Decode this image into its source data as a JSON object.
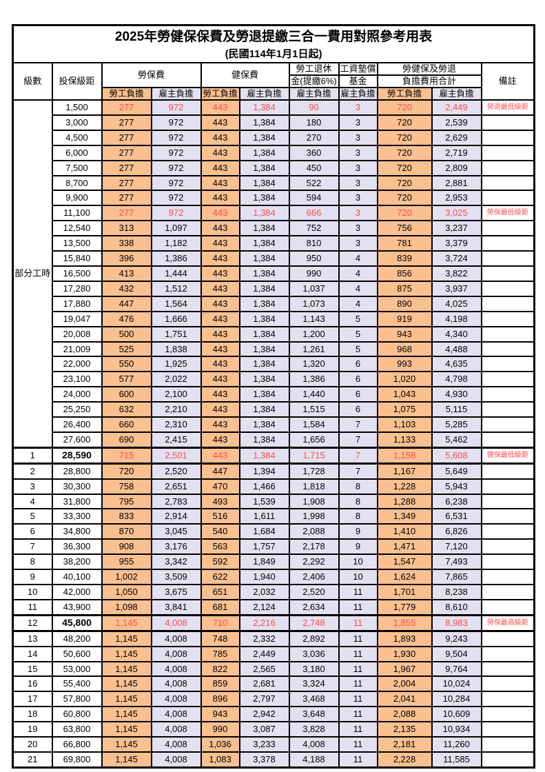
{
  "title": "2025年勞健保保費及勞退提繳三合一費用對照參考用表",
  "subtitle": "(民國114年1月1日起)",
  "colors": {
    "employee_bg": "#FAC090",
    "employer_bg": "#E3E1F1",
    "highlight_red": "#FF4A4A",
    "grid": "#000000"
  },
  "header": {
    "level": "級數",
    "bracket": "投保級距",
    "labor_insurance": "勞保費",
    "health_insurance": "健保費",
    "pension_line1": "勞工退休",
    "pension_line2": "金(提繳6%)",
    "fund_line1": "工資墊償",
    "fund_line2": "基金",
    "total_line1": "勞健保及勞退",
    "total_line2": "負擔費用合計",
    "note": "備註",
    "employee": "勞工負擔",
    "employer": "雇主負擔"
  },
  "part_time_label": "部分工時",
  "rows": [
    {
      "lvl": "",
      "bracket": "1,500",
      "li_e": "277",
      "li_r": "972",
      "hi_e": "443",
      "hi_r": "1,384",
      "pen": "90",
      "fund": "3",
      "tt_e": "720",
      "tt_r": "2,449",
      "note": "勞退最低級距",
      "red": true,
      "bold": false
    },
    {
      "lvl": "",
      "bracket": "3,000",
      "li_e": "277",
      "li_r": "972",
      "hi_e": "443",
      "hi_r": "1,384",
      "pen": "180",
      "fund": "3",
      "tt_e": "720",
      "tt_r": "2,539",
      "note": "",
      "red": false,
      "bold": false
    },
    {
      "lvl": "",
      "bracket": "4,500",
      "li_e": "277",
      "li_r": "972",
      "hi_e": "443",
      "hi_r": "1,384",
      "pen": "270",
      "fund": "3",
      "tt_e": "720",
      "tt_r": "2,629",
      "note": "",
      "red": false,
      "bold": false
    },
    {
      "lvl": "",
      "bracket": "6,000",
      "li_e": "277",
      "li_r": "972",
      "hi_e": "443",
      "hi_r": "1,384",
      "pen": "360",
      "fund": "3",
      "tt_e": "720",
      "tt_r": "2,719",
      "note": "",
      "red": false,
      "bold": false
    },
    {
      "lvl": "",
      "bracket": "7,500",
      "li_e": "277",
      "li_r": "972",
      "hi_e": "443",
      "hi_r": "1,384",
      "pen": "450",
      "fund": "3",
      "tt_e": "720",
      "tt_r": "2,809",
      "note": "",
      "red": false,
      "bold": false
    },
    {
      "lvl": "",
      "bracket": "8,700",
      "li_e": "277",
      "li_r": "972",
      "hi_e": "443",
      "hi_r": "1,384",
      "pen": "522",
      "fund": "3",
      "tt_e": "720",
      "tt_r": "2,881",
      "note": "",
      "red": false,
      "bold": false
    },
    {
      "lvl": "",
      "bracket": "9,900",
      "li_e": "277",
      "li_r": "972",
      "hi_e": "443",
      "hi_r": "1,384",
      "pen": "594",
      "fund": "3",
      "tt_e": "720",
      "tt_r": "2,953",
      "note": "",
      "red": false,
      "bold": false
    },
    {
      "lvl": "",
      "bracket": "11,100",
      "li_e": "277",
      "li_r": "972",
      "hi_e": "443",
      "hi_r": "1,384",
      "pen": "666",
      "fund": "3",
      "tt_e": "720",
      "tt_r": "3,025",
      "note": "勞保最低級距",
      "red": true,
      "bold": false
    },
    {
      "lvl": "",
      "bracket": "12,540",
      "li_e": "313",
      "li_r": "1,097",
      "hi_e": "443",
      "hi_r": "1,384",
      "pen": "752",
      "fund": "3",
      "tt_e": "756",
      "tt_r": "3,237",
      "note": "",
      "red": false,
      "bold": false
    },
    {
      "lvl": "",
      "bracket": "13,500",
      "li_e": "338",
      "li_r": "1,182",
      "hi_e": "443",
      "hi_r": "1,384",
      "pen": "810",
      "fund": "3",
      "tt_e": "781",
      "tt_r": "3,379",
      "note": "",
      "red": false,
      "bold": false
    },
    {
      "lvl": "",
      "bracket": "15,840",
      "li_e": "396",
      "li_r": "1,386",
      "hi_e": "443",
      "hi_r": "1,384",
      "pen": "950",
      "fund": "4",
      "tt_e": "839",
      "tt_r": "3,724",
      "note": "",
      "red": false,
      "bold": false
    },
    {
      "lvl": "",
      "bracket": "16,500",
      "li_e": "413",
      "li_r": "1,444",
      "hi_e": "443",
      "hi_r": "1,384",
      "pen": "990",
      "fund": "4",
      "tt_e": "856",
      "tt_r": "3,822",
      "note": "",
      "red": false,
      "bold": false
    },
    {
      "lvl": "",
      "bracket": "17,280",
      "li_e": "432",
      "li_r": "1,512",
      "hi_e": "443",
      "hi_r": "1,384",
      "pen": "1,037",
      "fund": "4",
      "tt_e": "875",
      "tt_r": "3,937",
      "note": "",
      "red": false,
      "bold": false
    },
    {
      "lvl": "",
      "bracket": "17,880",
      "li_e": "447",
      "li_r": "1,564",
      "hi_e": "443",
      "hi_r": "1,384",
      "pen": "1,073",
      "fund": "4",
      "tt_e": "890",
      "tt_r": "4,025",
      "note": "",
      "red": false,
      "bold": false
    },
    {
      "lvl": "",
      "bracket": "19,047",
      "li_e": "476",
      "li_r": "1,666",
      "hi_e": "443",
      "hi_r": "1,384",
      "pen": "1,143",
      "fund": "5",
      "tt_e": "919",
      "tt_r": "4,198",
      "note": "",
      "red": false,
      "bold": false
    },
    {
      "lvl": "",
      "bracket": "20,008",
      "li_e": "500",
      "li_r": "1,751",
      "hi_e": "443",
      "hi_r": "1,384",
      "pen": "1,200",
      "fund": "5",
      "tt_e": "943",
      "tt_r": "4,340",
      "note": "",
      "red": false,
      "bold": false
    },
    {
      "lvl": "",
      "bracket": "21,009",
      "li_e": "525",
      "li_r": "1,838",
      "hi_e": "443",
      "hi_r": "1,384",
      "pen": "1,261",
      "fund": "5",
      "tt_e": "968",
      "tt_r": "4,488",
      "note": "",
      "red": false,
      "bold": false
    },
    {
      "lvl": "",
      "bracket": "22,000",
      "li_e": "550",
      "li_r": "1,925",
      "hi_e": "443",
      "hi_r": "1,384",
      "pen": "1,320",
      "fund": "6",
      "tt_e": "993",
      "tt_r": "4,635",
      "note": "",
      "red": false,
      "bold": false
    },
    {
      "lvl": "",
      "bracket": "23,100",
      "li_e": "577",
      "li_r": "2,022",
      "hi_e": "443",
      "hi_r": "1,384",
      "pen": "1,386",
      "fund": "6",
      "tt_e": "1,020",
      "tt_r": "4,798",
      "note": "",
      "red": false,
      "bold": false
    },
    {
      "lvl": "",
      "bracket": "24,000",
      "li_e": "600",
      "li_r": "2,100",
      "hi_e": "443",
      "hi_r": "1,384",
      "pen": "1,440",
      "fund": "6",
      "tt_e": "1,043",
      "tt_r": "4,930",
      "note": "",
      "red": false,
      "bold": false
    },
    {
      "lvl": "",
      "bracket": "25,250",
      "li_e": "632",
      "li_r": "2,210",
      "hi_e": "443",
      "hi_r": "1,384",
      "pen": "1,515",
      "fund": "6",
      "tt_e": "1,075",
      "tt_r": "5,115",
      "note": "",
      "red": false,
      "bold": false
    },
    {
      "lvl": "",
      "bracket": "26,400",
      "li_e": "660",
      "li_r": "2,310",
      "hi_e": "443",
      "hi_r": "1,384",
      "pen": "1,584",
      "fund": "7",
      "tt_e": "1,103",
      "tt_r": "5,285",
      "note": "",
      "red": false,
      "bold": false
    },
    {
      "lvl": "",
      "bracket": "27,600",
      "li_e": "690",
      "li_r": "2,415",
      "hi_e": "443",
      "hi_r": "1,384",
      "pen": "1,656",
      "fund": "7",
      "tt_e": "1,133",
      "tt_r": "5,462",
      "note": "",
      "red": false,
      "bold": false
    },
    {
      "lvl": "1",
      "bracket": "28,590",
      "li_e": "715",
      "li_r": "2,501",
      "hi_e": "443",
      "hi_r": "1,384",
      "pen": "1,715",
      "fund": "7",
      "tt_e": "1,158",
      "tt_r": "5,608",
      "note": "健保最低級距",
      "red": true,
      "bold": true
    },
    {
      "lvl": "2",
      "bracket": "28,800",
      "li_e": "720",
      "li_r": "2,520",
      "hi_e": "447",
      "hi_r": "1,394",
      "pen": "1,728",
      "fund": "7",
      "tt_e": "1,167",
      "tt_r": "5,649",
      "note": "",
      "red": false,
      "bold": false
    },
    {
      "lvl": "3",
      "bracket": "30,300",
      "li_e": "758",
      "li_r": "2,651",
      "hi_e": "470",
      "hi_r": "1,466",
      "pen": "1,818",
      "fund": "8",
      "tt_e": "1,228",
      "tt_r": "5,943",
      "note": "",
      "red": false,
      "bold": false
    },
    {
      "lvl": "4",
      "bracket": "31,800",
      "li_e": "795",
      "li_r": "2,783",
      "hi_e": "493",
      "hi_r": "1,539",
      "pen": "1,908",
      "fund": "8",
      "tt_e": "1,288",
      "tt_r": "6,238",
      "note": "",
      "red": false,
      "bold": false
    },
    {
      "lvl": "5",
      "bracket": "33,300",
      "li_e": "833",
      "li_r": "2,914",
      "hi_e": "516",
      "hi_r": "1,611",
      "pen": "1,998",
      "fund": "8",
      "tt_e": "1,349",
      "tt_r": "6,531",
      "note": "",
      "red": false,
      "bold": false
    },
    {
      "lvl": "6",
      "bracket": "34,800",
      "li_e": "870",
      "li_r": "3,045",
      "hi_e": "540",
      "hi_r": "1,684",
      "pen": "2,088",
      "fund": "9",
      "tt_e": "1,410",
      "tt_r": "6,826",
      "note": "",
      "red": false,
      "bold": false
    },
    {
      "lvl": "7",
      "bracket": "36,300",
      "li_e": "908",
      "li_r": "3,176",
      "hi_e": "563",
      "hi_r": "1,757",
      "pen": "2,178",
      "fund": "9",
      "tt_e": "1,471",
      "tt_r": "7,120",
      "note": "",
      "red": false,
      "bold": false
    },
    {
      "lvl": "8",
      "bracket": "38,200",
      "li_e": "955",
      "li_r": "3,342",
      "hi_e": "592",
      "hi_r": "1,849",
      "pen": "2,292",
      "fund": "10",
      "tt_e": "1,547",
      "tt_r": "7,493",
      "note": "",
      "red": false,
      "bold": false
    },
    {
      "lvl": "9",
      "bracket": "40,100",
      "li_e": "1,002",
      "li_r": "3,509",
      "hi_e": "622",
      "hi_r": "1,940",
      "pen": "2,406",
      "fund": "10",
      "tt_e": "1,624",
      "tt_r": "7,865",
      "note": "",
      "red": false,
      "bold": false
    },
    {
      "lvl": "10",
      "bracket": "42,000",
      "li_e": "1,050",
      "li_r": "3,675",
      "hi_e": "651",
      "hi_r": "2,032",
      "pen": "2,520",
      "fund": "11",
      "tt_e": "1,701",
      "tt_r": "8,238",
      "note": "",
      "red": false,
      "bold": false
    },
    {
      "lvl": "11",
      "bracket": "43,900",
      "li_e": "1,098",
      "li_r": "3,841",
      "hi_e": "681",
      "hi_r": "2,124",
      "pen": "2,634",
      "fund": "11",
      "tt_e": "1,779",
      "tt_r": "8,610",
      "note": "",
      "red": false,
      "bold": false
    },
    {
      "lvl": "12",
      "bracket": "45,800",
      "li_e": "1,145",
      "li_r": "4,008",
      "hi_e": "710",
      "hi_r": "2,216",
      "pen": "2,748",
      "fund": "11",
      "tt_e": "1,855",
      "tt_r": "8,983",
      "note": "勞保最高級距",
      "red": true,
      "bold": true
    },
    {
      "lvl": "13",
      "bracket": "48,200",
      "li_e": "1,145",
      "li_r": "4,008",
      "hi_e": "748",
      "hi_r": "2,332",
      "pen": "2,892",
      "fund": "11",
      "tt_e": "1,893",
      "tt_r": "9,243",
      "note": "",
      "red": false,
      "bold": false
    },
    {
      "lvl": "14",
      "bracket": "50,600",
      "li_e": "1,145",
      "li_r": "4,008",
      "hi_e": "785",
      "hi_r": "2,449",
      "pen": "3,036",
      "fund": "11",
      "tt_e": "1,930",
      "tt_r": "9,504",
      "note": "",
      "red": false,
      "bold": false
    },
    {
      "lvl": "15",
      "bracket": "53,000",
      "li_e": "1,145",
      "li_r": "4,008",
      "hi_e": "822",
      "hi_r": "2,565",
      "pen": "3,180",
      "fund": "11",
      "tt_e": "1,967",
      "tt_r": "9,764",
      "note": "",
      "red": false,
      "bold": false
    },
    {
      "lvl": "16",
      "bracket": "55,400",
      "li_e": "1,145",
      "li_r": "4,008",
      "hi_e": "859",
      "hi_r": "2,681",
      "pen": "3,324",
      "fund": "11",
      "tt_e": "2,004",
      "tt_r": "10,024",
      "note": "",
      "red": false,
      "bold": false
    },
    {
      "lvl": "17",
      "bracket": "57,800",
      "li_e": "1,145",
      "li_r": "4,008",
      "hi_e": "896",
      "hi_r": "2,797",
      "pen": "3,468",
      "fund": "11",
      "tt_e": "2,041",
      "tt_r": "10,284",
      "note": "",
      "red": false,
      "bold": false
    },
    {
      "lvl": "18",
      "bracket": "60,800",
      "li_e": "1,145",
      "li_r": "4,008",
      "hi_e": "943",
      "hi_r": "2,942",
      "pen": "3,648",
      "fund": "11",
      "tt_e": "2,088",
      "tt_r": "10,609",
      "note": "",
      "red": false,
      "bold": false
    },
    {
      "lvl": "19",
      "bracket": "63,800",
      "li_e": "1,145",
      "li_r": "4,008",
      "hi_e": "990",
      "hi_r": "3,087",
      "pen": "3,828",
      "fund": "11",
      "tt_e": "2,135",
      "tt_r": "10,934",
      "note": "",
      "red": false,
      "bold": false
    },
    {
      "lvl": "20",
      "bracket": "66,800",
      "li_e": "1,145",
      "li_r": "4,008",
      "hi_e": "1,036",
      "hi_r": "3,233",
      "pen": "4,008",
      "fund": "11",
      "tt_e": "2,181",
      "tt_r": "11,260",
      "note": "",
      "red": false,
      "bold": false
    },
    {
      "lvl": "21",
      "bracket": "69,800",
      "li_e": "1,145",
      "li_r": "4,008",
      "hi_e": "1,083",
      "hi_r": "3,378",
      "pen": "4,188",
      "fund": "11",
      "tt_e": "2,228",
      "tt_r": "11,585",
      "note": "",
      "red": false,
      "bold": false
    }
  ]
}
